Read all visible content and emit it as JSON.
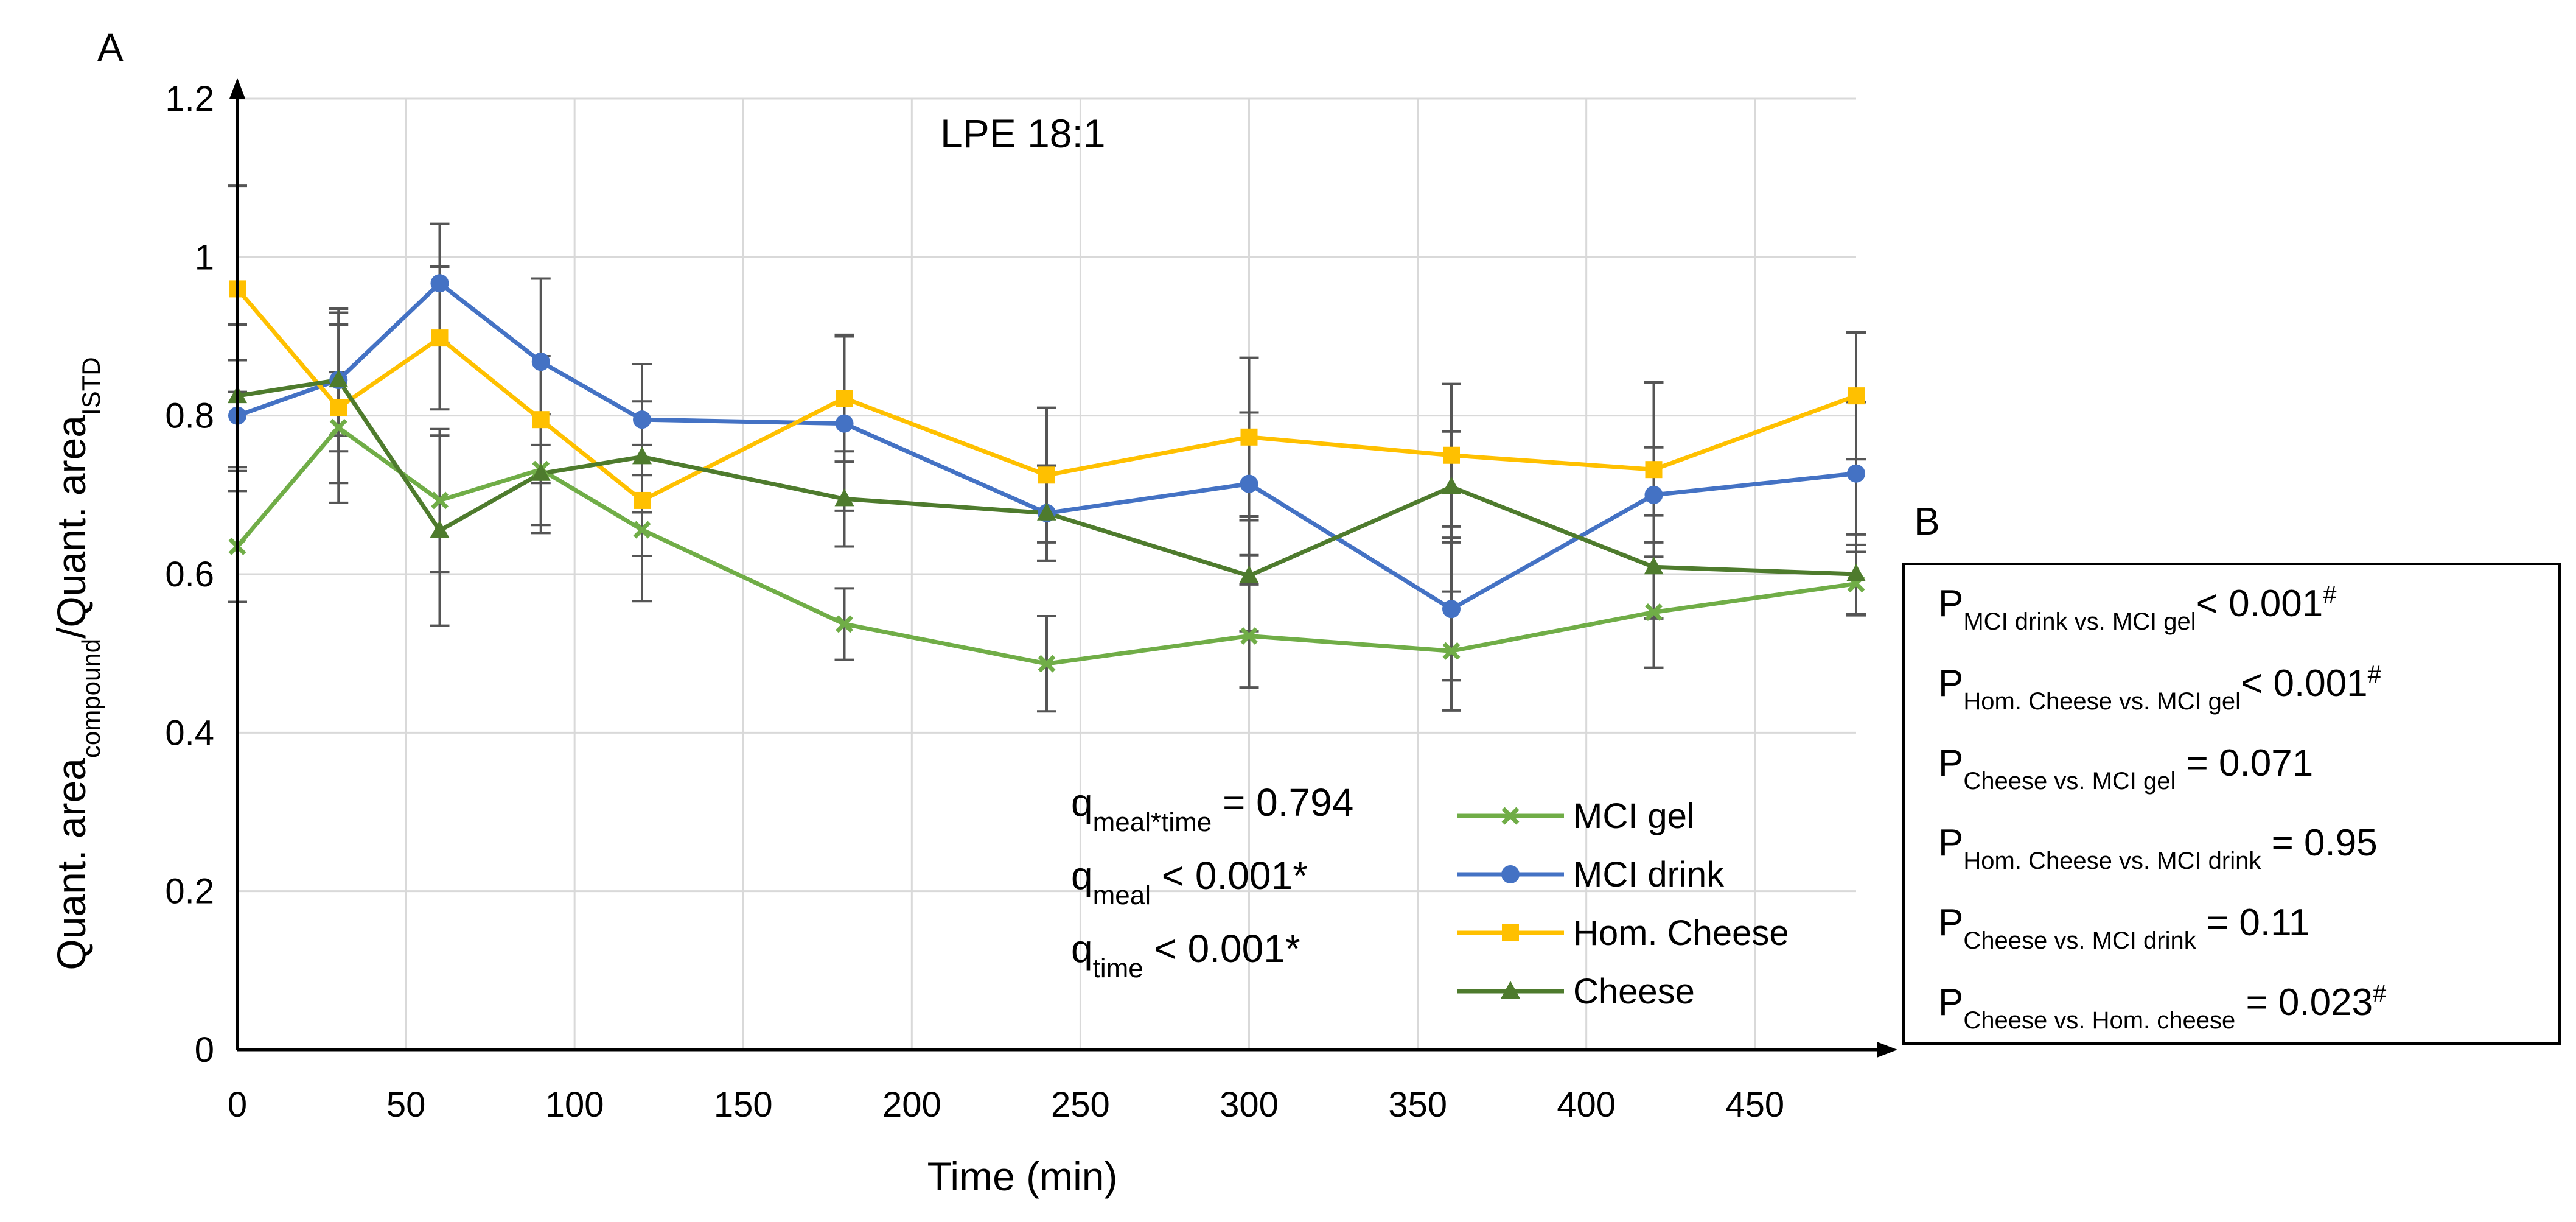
{
  "chart_data": {
    "type": "line",
    "panel_label": "A",
    "title": "LPE 18:1",
    "xlabel": "Time (min)",
    "ylabel": {
      "p1": "Quant. area",
      "s1": "compound",
      "p2": "/Quant. area",
      "s2": "ISTD"
    },
    "xlim": [
      0,
      480
    ],
    "ylim": [
      0,
      1.2
    ],
    "x_ticks": [
      0,
      50,
      100,
      150,
      200,
      250,
      300,
      350,
      400,
      450
    ],
    "x_tick_labels": [
      "0",
      "50",
      "100",
      "150",
      "200",
      "250",
      "300",
      "350",
      "400",
      "450"
    ],
    "y_ticks": [
      0,
      0.2,
      0.4,
      0.6,
      0.8,
      1,
      1.2
    ],
    "y_tick_labels": [
      "0",
      "0.2",
      "0.4",
      "0.6",
      "0.8",
      "1",
      "1.2"
    ],
    "x": [
      0,
      30,
      60,
      90,
      120,
      180,
      240,
      300,
      360,
      420,
      480
    ],
    "grid": true,
    "legend_position": "bottom-right",
    "series": [
      {
        "name": "MCI gel",
        "color": "#70ad47",
        "marker": "x",
        "values": [
          0.635,
          0.785,
          0.693,
          0.732,
          0.656,
          0.537,
          0.487,
          0.522,
          0.503,
          0.552,
          0.588
        ],
        "errors": [
          0.07,
          0.07,
          0.09,
          0.07,
          0.09,
          0.045,
          0.06,
          0.065,
          0.075,
          0.07,
          0.04
        ]
      },
      {
        "name": "MCI drink",
        "color": "#4472c4",
        "marker": "circle",
        "values": [
          0.8,
          0.845,
          0.967,
          0.868,
          0.795,
          0.79,
          0.677,
          0.714,
          0.556,
          0.7,
          0.727
        ],
        "errors": [
          0.07,
          0.07,
          0.075,
          0.105,
          0.07,
          0.11,
          0.06,
          0.09,
          0.09,
          0.06,
          0.09
        ]
      },
      {
        "name": "Hom. Cheese",
        "color": "#ffc000",
        "marker": "square",
        "values": [
          0.96,
          0.81,
          0.898,
          0.795,
          0.693,
          0.822,
          0.725,
          0.773,
          0.75,
          0.732,
          0.825
        ],
        "errors": [
          0.13,
          0.12,
          0.09,
          0.08,
          0.07,
          0.08,
          0.085,
          0.1,
          0.09,
          0.11,
          0.08
        ]
      },
      {
        "name": "Cheese",
        "color": "#4e7b2d",
        "marker": "triangle",
        "values": [
          0.825,
          0.845,
          0.655,
          0.727,
          0.748,
          0.695,
          0.677,
          0.598,
          0.71,
          0.609,
          0.6
        ],
        "errors": [
          0.09,
          0.09,
          0.12,
          0.075,
          0.07,
          0.06,
          0.06,
          0.07,
          0.07,
          0.065,
          0.05
        ]
      }
    ],
    "annotations": [
      {
        "main": "q",
        "sub": "meal*time",
        "rest": " = 0.794"
      },
      {
        "main": "q",
        "sub": "meal",
        "rest": " < 0.001*"
      },
      {
        "main": "q",
        "sub": "time",
        "rest": " < 0.001*"
      }
    ],
    "stats_panel": {
      "label": "B",
      "items": [
        {
          "main": "P",
          "sub": "MCI drink vs. MCI gel",
          "rest": "< 0.001",
          "sup": "#"
        },
        {
          "main": "P",
          "sub": "Hom. Cheese vs. MCI gel",
          "rest": "< 0.001",
          "sup": "#"
        },
        {
          "main": "P",
          "sub": "Cheese vs. MCI gel",
          "rest": " = 0.071",
          "sup": ""
        },
        {
          "main": "P",
          "sub": "Hom. Cheese vs. MCI drink",
          "rest": " = 0.95",
          "sup": ""
        },
        {
          "main": "P",
          "sub": "Cheese vs. MCI drink",
          "rest": " = 0.11",
          "sup": ""
        },
        {
          "main": "P",
          "sub": "Cheese vs. Hom. cheese",
          "rest": " = 0.023",
          "sup": "#"
        }
      ]
    }
  }
}
